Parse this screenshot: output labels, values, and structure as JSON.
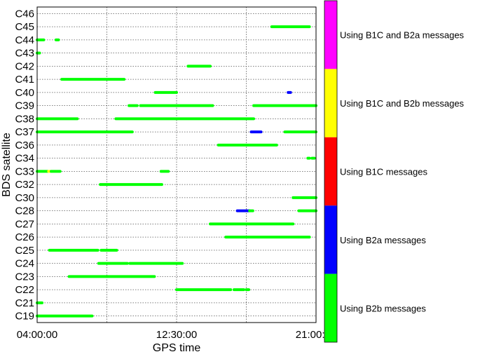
{
  "chart_data": {
    "type": "scatter",
    "title": "",
    "xlabel": "GPS time",
    "ylabel": "BDS satellite",
    "grid": true,
    "x_axis": {
      "unit": "hours",
      "range": [
        4.0,
        21.0
      ],
      "ticks": [
        4.0,
        12.5,
        21.0
      ],
      "tick_labels": [
        "04:00:00",
        "12:30:00",
        "21:00:00"
      ],
      "gridlines": [
        8.25,
        12.5,
        16.75
      ]
    },
    "satellites": [
      "C46",
      "C45",
      "C44",
      "C43",
      "C42",
      "C41",
      "C40",
      "C39",
      "C38",
      "C37",
      "C36",
      "C34",
      "C33",
      "C32",
      "C30",
      "C28",
      "C27",
      "C26",
      "C25",
      "C24",
      "C23",
      "C22",
      "C21",
      "C19"
    ],
    "legend": [
      {
        "label": "Using B1C and B2a messages",
        "color": "#ff00ff"
      },
      {
        "label": "Using B1C and B2b messages",
        "color": "#ffff00"
      },
      {
        "label": "Using B1C messages",
        "color": "#ff0000"
      },
      {
        "label": "Using B2a messages",
        "color": "#0000ff"
      },
      {
        "label": "Using B2b messages",
        "color": "#00ff00"
      }
    ],
    "segments": [
      {
        "sat": "C45",
        "start": 18.3,
        "end": 20.6,
        "color": "#00ff00"
      },
      {
        "sat": "C44",
        "start": 4.0,
        "end": 4.4,
        "color": "#00ff00"
      },
      {
        "sat": "C44",
        "start": 5.15,
        "end": 5.3,
        "color": "#00ff00"
      },
      {
        "sat": "C43",
        "start": 4.0,
        "end": 4.15,
        "color": "#00ff00"
      },
      {
        "sat": "C42",
        "start": 13.2,
        "end": 14.55,
        "color": "#00ff00"
      },
      {
        "sat": "C41",
        "start": 5.5,
        "end": 9.3,
        "color": "#00ff00"
      },
      {
        "sat": "C40",
        "start": 11.2,
        "end": 12.5,
        "color": "#00ff00"
      },
      {
        "sat": "C40",
        "start": 19.3,
        "end": 19.45,
        "color": "#0000ff"
      },
      {
        "sat": "C39",
        "start": 9.6,
        "end": 10.1,
        "color": "#00ff00"
      },
      {
        "sat": "C39",
        "start": 10.3,
        "end": 14.5,
        "color": "#00ff00"
      },
      {
        "sat": "C39",
        "start": 14.55,
        "end": 14.7,
        "color": "#00ff00"
      },
      {
        "sat": "C39",
        "start": 17.2,
        "end": 21.0,
        "color": "#00ff00"
      },
      {
        "sat": "C38",
        "start": 4.0,
        "end": 6.45,
        "color": "#00ff00"
      },
      {
        "sat": "C38",
        "start": 8.8,
        "end": 17.2,
        "color": "#00ff00"
      },
      {
        "sat": "C37",
        "start": 4.0,
        "end": 9.8,
        "color": "#00ff00"
      },
      {
        "sat": "C37",
        "start": 17.05,
        "end": 17.65,
        "color": "#0000ff"
      },
      {
        "sat": "C37",
        "start": 19.1,
        "end": 21.0,
        "color": "#00ff00"
      },
      {
        "sat": "C36",
        "start": 15.05,
        "end": 18.6,
        "color": "#00ff00"
      },
      {
        "sat": "C34",
        "start": 20.5,
        "end": 20.6,
        "color": "#00ff00"
      },
      {
        "sat": "C34",
        "start": 20.75,
        "end": 20.9,
        "color": "#00ff00"
      },
      {
        "sat": "C33",
        "start": 4.0,
        "end": 4.65,
        "color": "#00ff00"
      },
      {
        "sat": "C33",
        "start": 4.7,
        "end": 4.8,
        "color": "#ffff00"
      },
      {
        "sat": "C33",
        "start": 4.85,
        "end": 5.4,
        "color": "#00ff00"
      },
      {
        "sat": "C33",
        "start": 11.55,
        "end": 12.0,
        "color": "#00ff00"
      },
      {
        "sat": "C32",
        "start": 7.85,
        "end": 11.6,
        "color": "#00ff00"
      },
      {
        "sat": "C30",
        "start": 19.6,
        "end": 21.0,
        "color": "#00ff00"
      },
      {
        "sat": "C28",
        "start": 16.2,
        "end": 16.95,
        "color": "#0000ff"
      },
      {
        "sat": "C28",
        "start": 16.95,
        "end": 17.15,
        "color": "#00ff00"
      },
      {
        "sat": "C28",
        "start": 19.95,
        "end": 21.0,
        "color": "#00ff00"
      },
      {
        "sat": "C27",
        "start": 14.55,
        "end": 19.6,
        "color": "#00ff00"
      },
      {
        "sat": "C26",
        "start": 15.5,
        "end": 20.6,
        "color": "#00ff00"
      },
      {
        "sat": "C25",
        "start": 4.75,
        "end": 7.7,
        "color": "#00ff00"
      },
      {
        "sat": "C25",
        "start": 7.9,
        "end": 8.85,
        "color": "#00ff00"
      },
      {
        "sat": "C24",
        "start": 7.75,
        "end": 9.5,
        "color": "#00ff00"
      },
      {
        "sat": "C24",
        "start": 9.65,
        "end": 12.85,
        "color": "#00ff00"
      },
      {
        "sat": "C23",
        "start": 5.95,
        "end": 11.15,
        "color": "#00ff00"
      },
      {
        "sat": "C22",
        "start": 12.5,
        "end": 15.8,
        "color": "#00ff00"
      },
      {
        "sat": "C22",
        "start": 16.0,
        "end": 16.6,
        "color": "#00ff00"
      },
      {
        "sat": "C22",
        "start": 16.75,
        "end": 16.9,
        "color": "#00ff00"
      },
      {
        "sat": "C21",
        "start": 4.0,
        "end": 4.3,
        "color": "#00ff00"
      },
      {
        "sat": "C19",
        "start": 4.0,
        "end": 7.35,
        "color": "#00ff00"
      }
    ]
  }
}
